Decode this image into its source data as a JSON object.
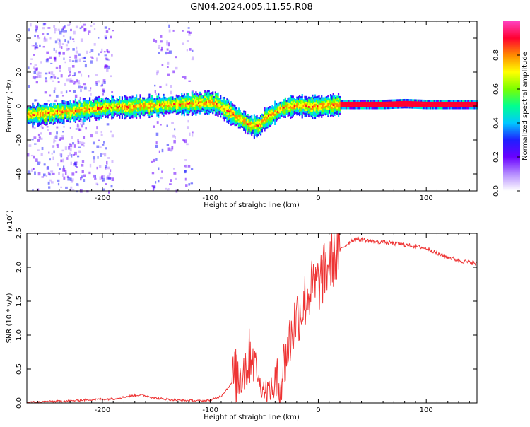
{
  "title": "GN04.2024.005.11.55.R08",
  "chart_data": [
    {
      "type": "heatmap",
      "xlabel": "Height of straight line (km)",
      "ylabel": "Frequency (Hz)",
      "xlim": [
        -270,
        147
      ],
      "ylim": [
        -50,
        50
      ],
      "xticks": [
        -200,
        -100,
        0,
        100
      ],
      "xtick_labels": [
        "-200",
        "-100",
        "0",
        "100"
      ],
      "yticks": [
        -40,
        -20,
        0,
        20,
        40
      ],
      "ytick_labels": [
        "-40",
        "-20",
        "0",
        "20",
        "40"
      ],
      "colorbar": {
        "label": "Normalized spectral amplitude",
        "range": [
          0,
          1
        ],
        "ticks": [
          0.0,
          0.2,
          0.4,
          0.6,
          0.8
        ],
        "tick_labels": [
          "0.0",
          "0.2",
          "0.4",
          "0.6",
          "0.8"
        ],
        "colors": [
          "#ffffff",
          "#b58cff",
          "#6a00ff",
          "#1f1fff",
          "#00c8ff",
          "#00ff90",
          "#7aff00",
          "#ffff00",
          "#ff8a00",
          "#ff0030",
          "#ff40c0"
        ]
      },
      "ridge": {
        "x": [
          -268,
          -255,
          -240,
          -225,
          -210,
          -195,
          -180,
          -165,
          -150,
          -135,
          -120,
          -110,
          -100,
          -95,
          -90,
          -85,
          -80,
          -75,
          -70,
          -65,
          -60,
          -55,
          -50,
          -45,
          -40,
          -35,
          -30,
          -25,
          -20,
          -10,
          0,
          10,
          20,
          40,
          60,
          80,
          100,
          120,
          147
        ],
        "y": [
          -4.5,
          -4,
          -3,
          -2,
          -1,
          0,
          0,
          0.5,
          1,
          1.5,
          2,
          2.5,
          3,
          2,
          0,
          -2,
          -4,
          -6,
          -8,
          -10,
          -11,
          -11,
          -7,
          -5,
          -3,
          -1,
          0,
          0.5,
          1,
          0.5,
          0.5,
          1,
          1.5,
          1.5,
          1.5,
          2,
          1.5,
          1.5,
          1.5
        ]
      },
      "grid": false
    },
    {
      "type": "line",
      "xlabel": "Height of straight line (km)",
      "ylabel": "SNR (10 * v/v)",
      "multiplier_label": "(x10",
      "multiplier_exp": "4",
      "multiplier_close": ")",
      "xlim": [
        -270,
        147
      ],
      "ylim": [
        0,
        2.5
      ],
      "xticks": [
        -200,
        -100,
        0,
        100
      ],
      "xtick_labels": [
        "-200",
        "-100",
        "0",
        "100"
      ],
      "yticks": [
        0.0,
        0.5,
        1.0,
        1.5,
        2.0,
        2.5
      ],
      "ytick_labels": [
        "0.0",
        "0.5",
        "1.0",
        "1.5",
        "2.0",
        "2.5"
      ],
      "color": "#ee3333",
      "x": [
        -270,
        -250,
        -230,
        -210,
        -190,
        -175,
        -165,
        -150,
        -130,
        -110,
        -100,
        -90,
        -80,
        -75,
        -70,
        -65,
        -62,
        -58,
        -55,
        -50,
        -45,
        -40,
        -35,
        -30,
        -25,
        -20,
        -15,
        -10,
        -5,
        0,
        5,
        10,
        15,
        20,
        25,
        30,
        35,
        40,
        50,
        60,
        70,
        80,
        90,
        100,
        105,
        110,
        120,
        130,
        147
      ],
      "y": [
        0.01,
        0.02,
        0.03,
        0.05,
        0.06,
        0.1,
        0.12,
        0.07,
        0.04,
        0.03,
        0.04,
        0.1,
        0.3,
        0.4,
        0.5,
        0.6,
        0.8,
        0.6,
        0.3,
        0.2,
        0.2,
        0.2,
        0.3,
        0.7,
        1.0,
        1.3,
        1.4,
        1.6,
        1.7,
        1.75,
        1.9,
        2.05,
        2.15,
        2.25,
        2.32,
        2.38,
        2.42,
        2.41,
        2.38,
        2.37,
        2.35,
        2.33,
        2.31,
        2.28,
        2.25,
        2.2,
        2.15,
        2.1,
        2.05
      ]
    }
  ]
}
